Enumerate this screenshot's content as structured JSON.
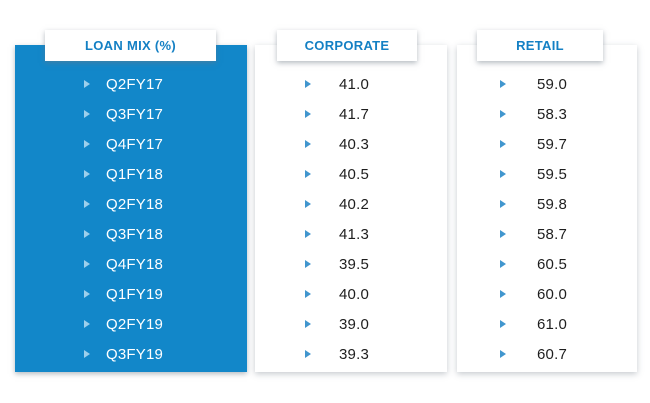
{
  "title": "LOAN MIX (%)",
  "colors": {
    "panel_blue": "#1287c9",
    "header_text_blue": "#1480c4",
    "bullet_blue_on_white": "#4196ce",
    "bullet_light_on_blue": "#9dcfec",
    "value_text": "#1e1e1e"
  },
  "icons": {
    "row_bullet": "right-triangle-icon"
  },
  "table": {
    "columns": [
      {
        "header": "LOAN MIX (%)"
      },
      {
        "header": "CORPORATE"
      },
      {
        "header": "RETAIL"
      }
    ],
    "rows": [
      {
        "quarter": "Q2FY17",
        "corporate": "41.0",
        "retail": "59.0"
      },
      {
        "quarter": "Q3FY17",
        "corporate": "41.7",
        "retail": "58.3"
      },
      {
        "quarter": "Q4FY17",
        "corporate": "40.3",
        "retail": "59.7"
      },
      {
        "quarter": "Q1FY18",
        "corporate": "40.5",
        "retail": "59.5"
      },
      {
        "quarter": "Q2FY18",
        "corporate": "40.2",
        "retail": "59.8"
      },
      {
        "quarter": "Q3FY18",
        "corporate": "41.3",
        "retail": "58.7"
      },
      {
        "quarter": "Q4FY18",
        "corporate": "39.5",
        "retail": "60.5"
      },
      {
        "quarter": "Q1FY19",
        "corporate": "40.0",
        "retail": "60.0"
      },
      {
        "quarter": "Q2FY19",
        "corporate": "39.0",
        "retail": "61.0"
      },
      {
        "quarter": "Q3FY19",
        "corporate": "39.3",
        "retail": "60.7"
      }
    ]
  },
  "chart_data": {
    "type": "table",
    "title": "LOAN MIX (%)",
    "categories": [
      "Q2FY17",
      "Q3FY17",
      "Q4FY17",
      "Q1FY18",
      "Q2FY18",
      "Q3FY18",
      "Q4FY18",
      "Q1FY19",
      "Q2FY19",
      "Q3FY19"
    ],
    "series": [
      {
        "name": "CORPORATE",
        "values": [
          41.0,
          41.7,
          40.3,
          40.5,
          40.2,
          41.3,
          39.5,
          40.0,
          39.0,
          39.3
        ]
      },
      {
        "name": "RETAIL",
        "values": [
          59.0,
          58.3,
          59.7,
          59.5,
          59.8,
          58.7,
          60.5,
          60.0,
          61.0,
          60.7
        ]
      }
    ],
    "unit": "percent"
  }
}
